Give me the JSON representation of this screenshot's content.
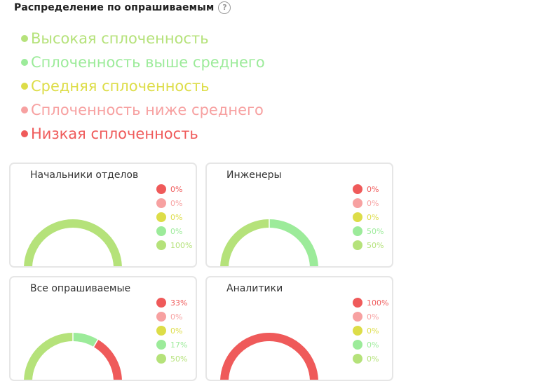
{
  "header": {
    "title": "Распределение по опрашиваемым",
    "help_icon": "?"
  },
  "legend": [
    {
      "label": "Высокая сплоченность",
      "color": "#b5e27a"
    },
    {
      "label": "Сплоченность выше среднего",
      "color": "#9ceb9a"
    },
    {
      "label": "Средняя сплоченность",
      "color": "#dddd48"
    },
    {
      "label": "Сплоченность ниже среднего",
      "color": "#f7a1a1"
    },
    {
      "label": "Низкая сплоченность",
      "color": "#ef5a5a"
    }
  ],
  "level_colors": [
    "#ef5a5a",
    "#f7a1a1",
    "#dddd48",
    "#9ceb9a",
    "#b5e27a"
  ],
  "chart_data": [
    {
      "type": "pie",
      "title": "Начальники отделов",
      "categories": [
        "Низкая сплоченность",
        "Сплоченность ниже среднего",
        "Средняя сплоченность",
        "Сплоченность выше среднего",
        "Высокая сплоченность"
      ],
      "values": [
        0,
        0,
        0,
        0,
        100
      ],
      "labels": [
        "0%",
        "0%",
        "0%",
        "0%",
        "100%"
      ]
    },
    {
      "type": "pie",
      "title": "Инженеры",
      "categories": [
        "Низкая сплоченность",
        "Сплоченность ниже среднего",
        "Средняя сплоченность",
        "Сплоченность выше среднего",
        "Высокая сплоченность"
      ],
      "values": [
        0,
        0,
        0,
        50,
        50
      ],
      "labels": [
        "0%",
        "0%",
        "0%",
        "50%",
        "50%"
      ]
    },
    {
      "type": "pie",
      "title": "Все опрашиваемые",
      "categories": [
        "Низкая сплоченность",
        "Сплоченность ниже среднего",
        "Средняя сплоченность",
        "Сплоченность выше среднего",
        "Высокая сплоченность"
      ],
      "values": [
        33,
        0,
        0,
        17,
        50
      ],
      "labels": [
        "33%",
        "0%",
        "0%",
        "17%",
        "50%"
      ]
    },
    {
      "type": "pie",
      "title": "Аналитики",
      "categories": [
        "Низкая сплоченность",
        "Сплоченность ниже среднего",
        "Средняя сплоченность",
        "Сплоченность выше среднего",
        "Высокая сплоченность"
      ],
      "values": [
        100,
        0,
        0,
        0,
        0
      ],
      "labels": [
        "100%",
        "0%",
        "0%",
        "0%",
        "0%"
      ]
    }
  ]
}
